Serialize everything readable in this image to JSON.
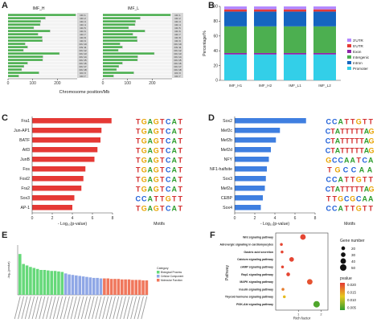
{
  "panel_labels": [
    "A",
    "B",
    "C",
    "D",
    "E",
    "F"
  ],
  "colors": {
    "green": "#4CAF50",
    "red": "#E53935",
    "blue": "#3F7FE0",
    "cyan": "#33CFE8",
    "gray": "#D8D8D8",
    "purple": "#8E24AA",
    "bubble_low": "#2E9E2E",
    "bubble_high": "#E53935"
  },
  "chart_data": [
    {
      "id": "A",
      "type": "bar",
      "subplots": [
        {
          "title": "IMF_H",
          "label_prefix": "Chr"
        },
        {
          "title": "IMF_L",
          "label_prefix": "Chr"
        }
      ],
      "categories": [
        "Chr 1",
        "Chr 2",
        "Chr 3",
        "Chr 4",
        "Chr 5",
        "Chr 6",
        "Chr 7",
        "Chr 8",
        "Chr 9",
        "Chr 10",
        "Chr 11",
        "Chr 12",
        "Chr 13",
        "Chr 14",
        "Chr 15",
        "Chr 16",
        "Chr 17",
        "Chr 18",
        "Chr X",
        "Chr Y"
      ],
      "values": [
        274,
        151,
        132,
        130,
        104,
        170,
        121,
        138,
        139,
        69,
        79,
        62,
        208,
        141,
        140,
        79,
        64,
        55,
        125,
        43
      ],
      "xlabel": "Chromosome position/Mb",
      "xticks": [
        0,
        100,
        200
      ],
      "xlim": [
        0,
        280
      ]
    },
    {
      "id": "B",
      "type": "bar",
      "stacked": true,
      "categories": [
        "IMF_H1",
        "IMF_H2",
        "IMF_L1",
        "IMF_L2"
      ],
      "ylabel": "Percentage/%",
      "ylim": [
        0,
        100
      ],
      "yticks": [
        0,
        20,
        40,
        60,
        80,
        100
      ],
      "series": [
        {
          "name": "Promoter",
          "values": [
            35,
            35,
            35,
            35
          ],
          "color": "#33CFE8"
        },
        {
          "name": "Exon",
          "values": [
            2,
            2,
            2,
            2
          ],
          "color": "#8E24AA"
        },
        {
          "name": "Intergenic",
          "values": [
            36,
            36,
            36,
            36
          ],
          "color": "#4CAF50"
        },
        {
          "name": "Intron",
          "values": [
            20,
            20,
            20,
            20
          ],
          "color": "#1565C0"
        },
        {
          "name": "5'UTR",
          "values": [
            3,
            3,
            3,
            3
          ],
          "color": "#E53935"
        },
        {
          "name": "3'UTR",
          "values": [
            4,
            4,
            4,
            4
          ],
          "color": "#B388FF"
        }
      ],
      "legend_order": [
        "3'UTR",
        "5'UTR",
        "Exon",
        "Intergenic",
        "Intron",
        "Promoter"
      ],
      "legend": "right"
    },
    {
      "id": "C",
      "type": "bar",
      "orientation": "horizontal",
      "categories": [
        "Fra1",
        "Jun-AP1",
        "BATF",
        "Atf3",
        "JunB",
        "Fos",
        "Fosl2",
        "Fra2",
        "Sox3",
        "AP-1"
      ],
      "values": [
        7.9,
        6.9,
        6.8,
        6.5,
        6.2,
        5.3,
        5.1,
        4.9,
        4.2,
        4.0
      ],
      "xlabel": "- Log₁₀(p-value)",
      "xticks": [
        0,
        2,
        4,
        6,
        8
      ],
      "xlim": [
        0,
        8
      ],
      "motif_heading": "Motifs",
      "motifs": [
        "TGAGTCAT",
        "TGAGTCAT",
        "TGAGTCAT",
        "TGAGTCAT",
        "TGAGTCAT",
        "TGAGTCAT",
        "TGAGTCAT",
        "TGAGTCAT",
        "CCATTGTT",
        "TGAGTCAT"
      ]
    },
    {
      "id": "D",
      "type": "bar",
      "orientation": "horizontal",
      "categories": [
        "Sox2",
        "Mef2c",
        "Mef2b",
        "Mef2d",
        "NFY",
        "NF1-halfsite",
        "Sox3",
        "Mef2a",
        "CEBP",
        "Sox4"
      ],
      "values": [
        7.1,
        4.5,
        4.1,
        3.6,
        3.4,
        3.2,
        3.1,
        3.0,
        2.8,
        2.6
      ],
      "xlabel": "- Log₁₀(p-value)",
      "xticks": [
        0,
        2,
        4,
        6,
        8
      ],
      "xlim": [
        0,
        8
      ],
      "motif_heading": "Motifs",
      "motifs": [
        "CCATTGTT",
        "CTATTTTTAG",
        "CTATTTTTAG",
        "CTATTTTTAG",
        "GCCAATCA",
        "TGCCAA",
        "CCATTGTT",
        "CTATTTTTAG",
        "TTGCGCAA",
        "CCATTGTT"
      ]
    },
    {
      "id": "E",
      "type": "bar",
      "ylabel": "-log₁₀(pvalue)",
      "ylim": [
        0,
        10
      ],
      "legend_title": "Category",
      "groups": [
        {
          "name": "Biological Process",
          "color": "#66D97A",
          "values": [
            8.2,
            6.2,
            5.9,
            5.6,
            5.4,
            5.2,
            5.0,
            5.0,
            4.9,
            4.8,
            4.8,
            4.7,
            4.6
          ]
        },
        {
          "name": "Cellular Component",
          "color": "#8FA7E6",
          "values": [
            4.3,
            4.1,
            4.0,
            3.9,
            3.8,
            3.7,
            3.6,
            3.5,
            3.4,
            3.4,
            3.3
          ]
        },
        {
          "name": "Molecular Function",
          "color": "#F0775C",
          "values": [
            3.3,
            3.3,
            3.2,
            3.2,
            3.2,
            3.1,
            3.1,
            3.1,
            3.0,
            3.0,
            3.0,
            2.9,
            2.9
          ]
        }
      ],
      "legend": "right"
    },
    {
      "id": "F",
      "type": "scatter",
      "categories": [
        "Wnt signaling pathway",
        "Adrenergic signaling in cardiomyocytes",
        "Gastric acid secretion",
        "Calcium signaling pathway",
        "cAMP signaling pathway",
        "Rap1 signaling pathway",
        "MAPK signaling pathway",
        "Insulin signaling pathway",
        "Thyroid hormone signaling pathway",
        "PI3K-Akt signaling pathway"
      ],
      "points": [
        {
          "pathway": "Wnt signaling pathway",
          "rich_factor": 1.2,
          "gene_number": 40,
          "pvalue": 0.024
        },
        {
          "pathway": "Adrenergic signaling in cardiomyocytes",
          "rich_factor": 0.25,
          "gene_number": 10,
          "pvalue": 0.024
        },
        {
          "pathway": "Gastric acid secretion",
          "rich_factor": 0.28,
          "gene_number": 10,
          "pvalue": 0.024
        },
        {
          "pathway": "Calcium signaling pathway",
          "rich_factor": 0.7,
          "gene_number": 30,
          "pvalue": 0.024
        },
        {
          "pathway": "cAMP signaling pathway",
          "rich_factor": 0.3,
          "gene_number": 10,
          "pvalue": 0.024
        },
        {
          "pathway": "Rap1 signaling pathway",
          "rich_factor": 0.55,
          "gene_number": 20,
          "pvalue": 0.024
        },
        {
          "pathway": "MAPK signaling pathway",
          "rich_factor": 1.5,
          "gene_number": 40,
          "pvalue": 0.023
        },
        {
          "pathway": "Insulin signaling pathway",
          "rich_factor": 0.32,
          "gene_number": 10,
          "pvalue": 0.02
        },
        {
          "pathway": "Thyroid hormone signaling pathway",
          "rich_factor": 0.38,
          "gene_number": 10,
          "pvalue": 0.015
        },
        {
          "pathway": "PI3K-Akt signaling pathway",
          "rich_factor": 1.8,
          "gene_number": 50,
          "pvalue": 0.005
        }
      ],
      "xlabel": "Rich factor",
      "ylabel": "Pathway",
      "xlim": [
        0,
        2.3
      ],
      "xticks": [
        1,
        2
      ],
      "size_legend_title": "Gene number",
      "size_legend_values": [
        20,
        30,
        40,
        50
      ],
      "color_legend_title": "pvalue",
      "color_legend_ticks": [
        "0.020",
        "0.015",
        "0.010",
        "0.005"
      ],
      "pvalue_range": [
        0.003,
        0.025
      ]
    }
  ]
}
